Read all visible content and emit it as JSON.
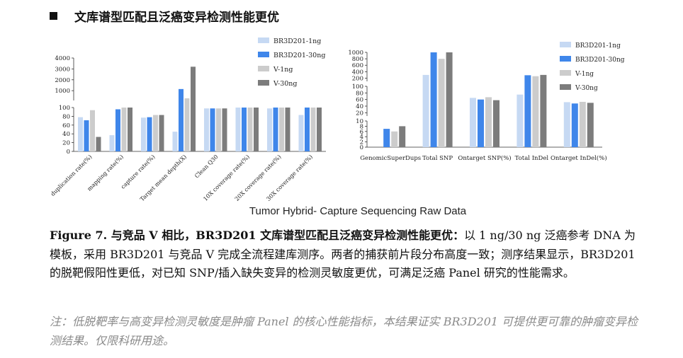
{
  "heading": {
    "bullet": "■",
    "title": "文库谱型匹配且泛癌变异检测性能更优"
  },
  "chart_caption": "Tumor Hybrid-  Capture Sequencing Raw Data",
  "colors": {
    "BR3D201-1ng": "#c6d9f3",
    "BR3D201-30ng": "#3f86ea",
    "V-1ng": "#cccccc",
    "V-30ng": "#7c7c7c"
  },
  "chart_data": [
    {
      "type": "bar",
      "title": "",
      "categories": [
        "duplication rate(%)",
        "mapping rate(%)",
        "capture rate(%)",
        "Target mean depth(X)",
        "Clean Q30",
        "10X coverage rate(%)",
        "20X coverage rate(%)",
        "30X coverage rate(%)"
      ],
      "series": [
        {
          "name": "BR3D201-1ng",
          "values": [
            78,
            37,
            77,
            45,
            98,
            100,
            98,
            83
          ]
        },
        {
          "name": "BR3D201-30ng",
          "values": [
            71,
            96,
            78,
            1150,
            98,
            100,
            100,
            100
          ]
        },
        {
          "name": "V-1ng",
          "values": [
            94,
            100,
            83,
            300,
            98,
            100,
            100,
            100
          ]
        },
        {
          "name": "V-30ng",
          "values": [
            33,
            100,
            83,
            3200,
            98,
            100,
            100,
            100
          ]
        }
      ],
      "y_axis_segments": [
        {
          "range": [
            0,
            100
          ],
          "ticks": [
            "0",
            "20",
            "40",
            "60",
            "80",
            "100"
          ]
        },
        {
          "range": [
            100,
            4000
          ],
          "ticks": [
            "1000",
            "2000",
            "3000",
            "4000"
          ]
        }
      ],
      "legend_position": "top-right"
    },
    {
      "type": "bar",
      "title": "",
      "categories": [
        "GenomicSuperDups",
        "Total SNP",
        "Ontarget SNP(%)",
        "Total InDel",
        "Ontarget InDel(%)"
      ],
      "series": [
        {
          "name": "BR3D201-1ng",
          "values": [
            0,
            300,
            65,
            75,
            52
          ]
        },
        {
          "name": "BR3D201-30ng",
          "values": [
            7,
            1020,
            60,
            290,
            48
          ]
        },
        {
          "name": "V-1ng",
          "values": [
            6,
            800,
            67,
            260,
            53
          ]
        },
        {
          "name": "V-30ng",
          "values": [
            8,
            1000,
            58,
            300,
            50
          ]
        }
      ],
      "y_axis_segments": [
        {
          "range": [
            0,
            10
          ],
          "ticks": [
            "0",
            "2",
            "4",
            "6",
            "8",
            "10"
          ]
        },
        {
          "range": [
            10,
            100
          ],
          "ticks": [
            "20",
            "40",
            "60",
            "80",
            "100"
          ]
        },
        {
          "range": [
            100,
            1000
          ],
          "ticks": [
            "200",
            "400",
            "600",
            "800",
            "1000"
          ]
        }
      ],
      "legend_position": "right"
    }
  ],
  "caption": {
    "label": "Figure 7. 与竞品 V 相比，BR3D201 文库谱型匹配且泛癌变异检测性能更优：",
    "body": "以 1 ng/30 ng 泛癌参考 DNA 为模板，采用 BR3D201 与竞品 V 完成全流程建库测序。两者的捕获前片段分布高度一致；测序结果显示，BR3D201 的脱靶假阳性更低，对已知 SNP/插入缺失变异的检测灵敏度更优，可满足泛癌 Panel 研究的性能需求。"
  },
  "note": "注：低脱靶率与高变异检测灵敏度是肿瘤 Panel 的核心性能指标，本结果证实 BR3D201 可提供更可靠的肿瘤变异检测结果。仅限科研用途。"
}
